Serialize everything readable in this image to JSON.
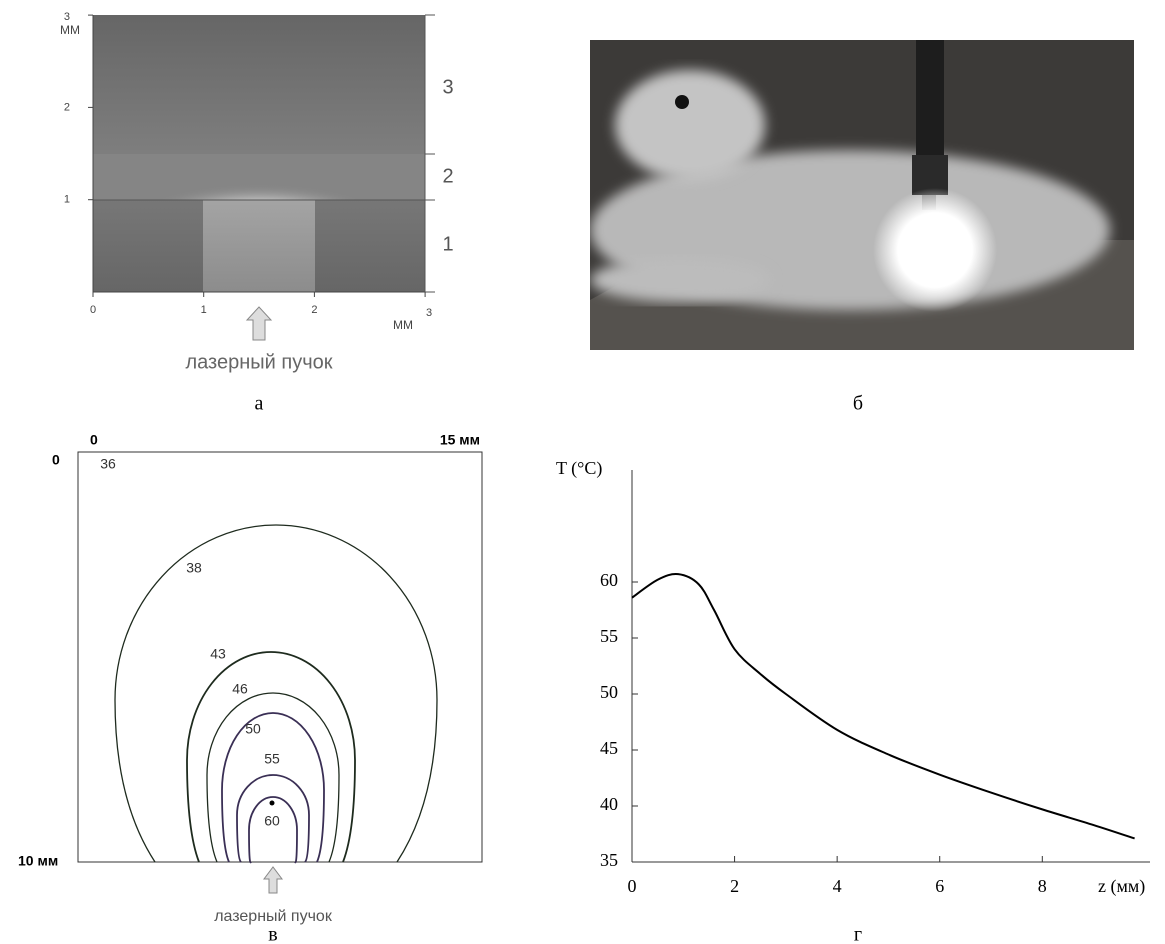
{
  "panels": [
    {
      "caption": "а",
      "y_unit": "MM",
      "x_unit": "MM",
      "xticks": [
        0,
        1,
        2,
        3
      ],
      "yticks": [
        1,
        2,
        3
      ],
      "layers": [
        "1",
        "2",
        "3"
      ],
      "beam_label": "лазерный пучок"
    },
    {
      "caption": "б"
    },
    {
      "caption": "в",
      "corner_labels": {
        "top_left": "0",
        "left_top": "0",
        "top_right": "15 мм",
        "left_bottom": "10 мм"
      },
      "contours": [
        36,
        38,
        43,
        46,
        50,
        55,
        60
      ],
      "beam_label": "лазерный пучок"
    },
    {
      "caption": "г"
    }
  ],
  "chart_data": {
    "type": "line",
    "x_label": "z (мм)",
    "y_label": "T (°C)",
    "color": "#000000",
    "x": [
      0,
      0.5,
      0.9,
      1.3,
      1.6,
      2,
      2.5,
      3,
      4,
      5,
      6,
      7,
      8,
      9,
      9.8
    ],
    "values": [
      58.6,
      60.2,
      60.7,
      59.8,
      57.5,
      54,
      51.8,
      50,
      46.8,
      44.6,
      42.8,
      41.2,
      39.7,
      38.3,
      37.1
    ],
    "xlim": [
      0,
      10.1
    ],
    "ylim": [
      35,
      70
    ],
    "xticks": [
      0,
      2,
      4,
      6,
      8
    ],
    "yticks": [
      35,
      40,
      45,
      50,
      55,
      60
    ]
  }
}
